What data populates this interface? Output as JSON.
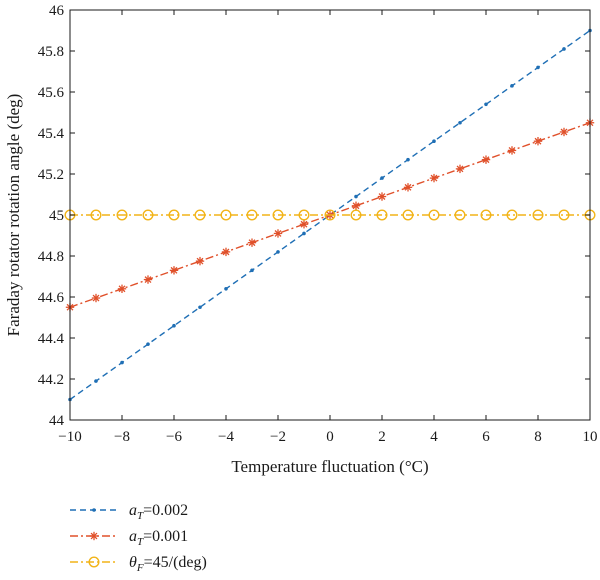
{
  "chart_data": {
    "type": "line",
    "xlabel": "Temperature fluctuation (°C)",
    "ylabel": "Faraday rotator rotation angle (deg)",
    "xlim": [
      -10,
      10
    ],
    "ylim": [
      44,
      46
    ],
    "x_ticks": [
      -10,
      -8,
      -6,
      -4,
      -2,
      0,
      2,
      4,
      6,
      8,
      10
    ],
    "y_ticks": [
      44,
      44.2,
      44.4,
      44.6,
      44.8,
      45,
      45.2,
      45.4,
      45.6,
      45.8,
      46
    ],
    "grid": false,
    "legend_position": "below plot, left-aligned",
    "series": [
      {
        "legend": {
          "symbol": "a",
          "subscript": "T",
          "suffix": "=0.002"
        },
        "color": "#1f6fb5",
        "line_style": "dashed",
        "marker": "dot",
        "x": [
          -10,
          -9,
          -8,
          -7,
          -6,
          -5,
          -4,
          -3,
          -2,
          -1,
          0,
          1,
          2,
          3,
          4,
          5,
          6,
          7,
          8,
          9,
          10
        ],
        "values": [
          44.1,
          44.19,
          44.28,
          44.37,
          44.46,
          44.55,
          44.64,
          44.73,
          44.82,
          44.91,
          45.0,
          45.09,
          45.18,
          45.27,
          45.36,
          45.45,
          45.54,
          45.63,
          45.72,
          45.81,
          45.9
        ]
      },
      {
        "legend": {
          "symbol": "a",
          "subscript": "T",
          "suffix": "=0.001"
        },
        "color": "#e0502a",
        "line_style": "dashdot",
        "marker": "asterisk",
        "x": [
          -10,
          -9,
          -8,
          -7,
          -6,
          -5,
          -4,
          -3,
          -2,
          -1,
          0,
          1,
          2,
          3,
          4,
          5,
          6,
          7,
          8,
          9,
          10
        ],
        "values": [
          44.55,
          44.595,
          44.64,
          44.685,
          44.73,
          44.775,
          44.82,
          44.865,
          44.91,
          44.955,
          45.0,
          45.045,
          45.09,
          45.135,
          45.18,
          45.225,
          45.27,
          45.315,
          45.36,
          45.405,
          45.45
        ]
      },
      {
        "legend": {
          "symbol": "θ",
          "subscript": "F",
          "suffix": "=45/(deg)"
        },
        "color": "#f2b418",
        "line_style": "dashdot",
        "marker": "circle",
        "x": [
          -10,
          -9,
          -8,
          -7,
          -6,
          -5,
          -4,
          -3,
          -2,
          -1,
          0,
          1,
          2,
          3,
          4,
          5,
          6,
          7,
          8,
          9,
          10
        ],
        "values": [
          45,
          45,
          45,
          45,
          45,
          45,
          45,
          45,
          45,
          45,
          45,
          45,
          45,
          45,
          45,
          45,
          45,
          45,
          45,
          45,
          45
        ]
      }
    ]
  }
}
